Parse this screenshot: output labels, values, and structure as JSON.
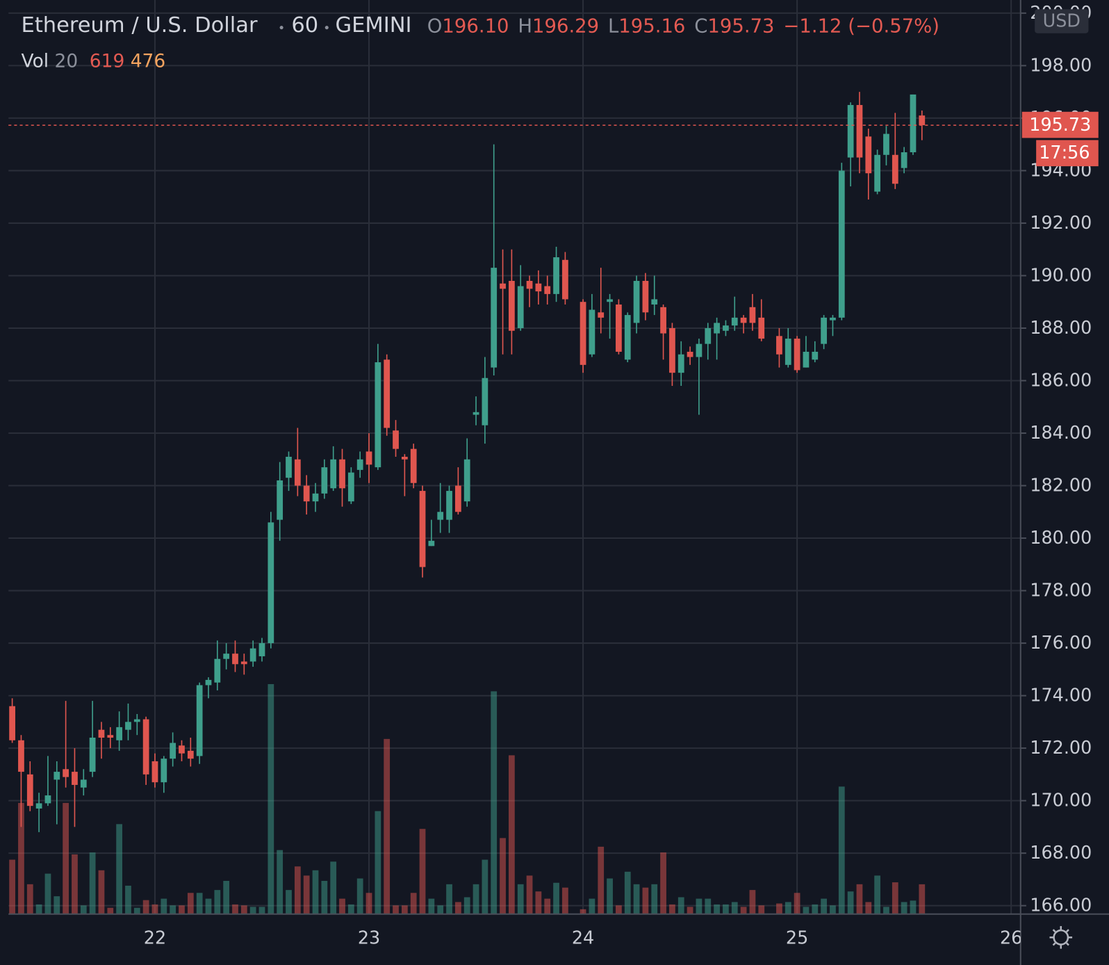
{
  "chart_data": {
    "type": "candlestick",
    "symbol": "Ethereum / U.S. Dollar",
    "interval": "60",
    "exchange": "GEMINI",
    "ohlc_legend": [
      {
        "key": "O",
        "value": "196.10"
      },
      {
        "key": "H",
        "value": "196.29"
      },
      {
        "key": "L",
        "value": "195.16"
      },
      {
        "key": "C",
        "value": "195.73"
      }
    ],
    "change": "−1.12 (−0.57%)",
    "volume_legend": {
      "label": "Vol",
      "length": 20,
      "ma": 476
    },
    "currency": "USD",
    "last_price": {
      "value": 195.73,
      "label": "195.73"
    },
    "countdown": "17:56",
    "up_color": "#3f9f8c",
    "down_color": "#e0564f",
    "grid": true,
    "x": [
      8,
      9,
      10,
      11,
      12,
      13,
      14,
      15,
      16,
      17,
      18,
      19,
      20,
      21,
      22,
      23,
      24,
      25,
      26,
      27,
      28,
      29,
      30,
      31,
      32,
      33,
      34,
      35,
      36,
      37,
      38,
      39,
      40,
      41,
      42,
      43,
      44,
      45,
      46,
      47,
      48,
      49,
      50,
      51,
      52,
      53,
      54,
      55,
      56,
      57,
      58,
      59,
      60,
      61,
      62,
      63,
      64,
      65,
      66,
      67,
      68,
      69,
      70,
      72,
      73,
      74,
      75,
      76,
      77,
      78,
      79,
      80,
      81,
      82,
      83,
      84,
      85,
      86,
      87,
      88,
      89,
      90,
      91,
      92,
      94,
      95,
      96,
      97,
      98,
      99,
      100,
      101,
      102,
      103,
      104,
      105,
      106,
      107,
      108,
      109,
      110
    ],
    "open": [
      173.6,
      172.3,
      171.0,
      169.7,
      169.9,
      170.8,
      171.2,
      171.1,
      170.5,
      171.1,
      172.7,
      172.5,
      172.3,
      172.7,
      173.0,
      173.1,
      171.5,
      170.7,
      171.6,
      172.1,
      171.9,
      171.7,
      174.4,
      174.5,
      175.4,
      175.6,
      175.3,
      175.3,
      175.5,
      176.0,
      180.7,
      182.3,
      183.0,
      182.0,
      181.4,
      181.7,
      181.9,
      183.0,
      181.4,
      182.6,
      183.3,
      182.7,
      186.8,
      184.1,
      183.1,
      183.4,
      181.8,
      179.7,
      180.7,
      180.7,
      182.0,
      181.4,
      184.7,
      184.3,
      186.5,
      189.7,
      189.8,
      188.0,
      189.8,
      189.7,
      189.6,
      189.3,
      190.6,
      189.0,
      187.0,
      188.6,
      189.0,
      188.9,
      186.8,
      188.2,
      189.8,
      188.9,
      188.8,
      188.0,
      186.3,
      187.1,
      186.9,
      187.4,
      187.8,
      187.9,
      188.1,
      188.4,
      188.8,
      188.4,
      187.7,
      186.6,
      187.6,
      186.5,
      186.8,
      187.4,
      188.3,
      188.4,
      194.5,
      196.5,
      195.3,
      193.2,
      194.6,
      194.6,
      194.1,
      194.7,
      196.1
    ],
    "high": [
      173.9,
      172.5,
      171.5,
      170.3,
      171.7,
      171.5,
      173.8,
      172.0,
      171.2,
      173.8,
      173.0,
      172.8,
      173.4,
      173.7,
      173.3,
      173.2,
      171.8,
      171.7,
      172.6,
      172.3,
      172.4,
      174.5,
      174.7,
      176.1,
      176.0,
      176.1,
      175.6,
      176.1,
      176.2,
      181.0,
      182.9,
      183.3,
      184.2,
      182.4,
      182.1,
      183.0,
      183.5,
      183.4,
      182.7,
      183.3,
      184.0,
      187.4,
      187.0,
      184.5,
      183.2,
      183.6,
      182.0,
      180.7,
      182.1,
      182.0,
      182.7,
      183.8,
      185.4,
      186.9,
      195.0,
      191.0,
      191.0,
      190.4,
      190.0,
      190.2,
      190.0,
      191.1,
      190.9,
      189.1,
      189.3,
      190.3,
      189.3,
      189.1,
      188.6,
      190.0,
      190.1,
      190.0,
      188.9,
      188.2,
      187.5,
      187.3,
      187.6,
      188.2,
      188.4,
      188.3,
      189.2,
      188.5,
      189.3,
      189.1,
      188.0,
      188.0,
      187.7,
      187.7,
      187.5,
      188.5,
      188.5,
      194.3,
      196.6,
      197.0,
      195.6,
      194.8,
      195.7,
      196.2,
      194.9,
      196.9,
      196.29
    ],
    "low": [
      172.2,
      169.0,
      169.6,
      168.8,
      169.8,
      169.1,
      170.5,
      169.0,
      170.2,
      170.9,
      171.6,
      172.0,
      171.9,
      172.3,
      172.5,
      170.6,
      170.5,
      170.3,
      171.3,
      171.5,
      171.3,
      171.4,
      173.9,
      174.2,
      175.0,
      174.9,
      174.8,
      175.1,
      175.3,
      175.8,
      179.9,
      181.8,
      181.6,
      180.9,
      181.0,
      181.5,
      181.8,
      181.2,
      181.3,
      182.3,
      182.1,
      182.6,
      183.9,
      183.1,
      181.6,
      181.9,
      178.5,
      179.7,
      180.2,
      180.2,
      180.9,
      181.2,
      184.3,
      183.6,
      186.2,
      187.0,
      187.0,
      187.9,
      188.8,
      188.9,
      188.9,
      189.0,
      188.9,
      186.3,
      186.9,
      187.8,
      187.6,
      187.0,
      186.7,
      187.8,
      188.3,
      188.5,
      186.8,
      185.8,
      185.8,
      186.6,
      184.7,
      186.8,
      186.8,
      187.7,
      187.9,
      187.8,
      187.9,
      187.5,
      186.5,
      186.5,
      186.3,
      186.5,
      186.7,
      187.2,
      187.7,
      188.3,
      193.4,
      193.9,
      192.9,
      193.1,
      194.2,
      193.3,
      193.9,
      194.6,
      195.16
    ],
    "close": [
      172.3,
      171.1,
      169.8,
      169.9,
      170.2,
      171.1,
      170.9,
      170.6,
      170.8,
      172.4,
      172.4,
      172.4,
      172.8,
      173.0,
      173.1,
      171.0,
      170.7,
      171.6,
      172.2,
      171.8,
      171.6,
      174.4,
      174.6,
      175.4,
      175.6,
      175.2,
      175.2,
      175.8,
      176.0,
      180.6,
      182.2,
      183.1,
      182.0,
      181.4,
      181.7,
      182.7,
      183.0,
      181.9,
      182.5,
      183.0,
      182.8,
      186.7,
      184.2,
      183.4,
      183.0,
      182.1,
      178.9,
      179.9,
      181.0,
      181.8,
      181.0,
      183.0,
      184.8,
      186.1,
      190.3,
      189.5,
      187.9,
      189.6,
      189.5,
      189.4,
      189.3,
      190.7,
      189.1,
      186.6,
      188.7,
      188.4,
      189.1,
      187.1,
      188.5,
      189.8,
      188.6,
      189.1,
      187.8,
      186.3,
      187.0,
      186.9,
      187.4,
      188.0,
      188.2,
      188.1,
      188.4,
      188.2,
      188.2,
      187.6,
      187.0,
      187.6,
      186.4,
      187.1,
      187.1,
      188.4,
      188.4,
      194.0,
      196.5,
      194.5,
      193.9,
      194.6,
      195.4,
      193.5,
      194.7,
      196.9,
      195.73
    ],
    "volume": [
      1130,
      2310,
      620,
      200,
      840,
      370,
      2310,
      1240,
      180,
      1280,
      910,
      130,
      1870,
      590,
      130,
      290,
      200,
      320,
      180,
      180,
      440,
      440,
      320,
      500,
      690,
      200,
      180,
      150,
      150,
      4780,
      1330,
      500,
      990,
      800,
      910,
      690,
      1090,
      320,
      200,
      740,
      440,
      2140,
      3640,
      180,
      180,
      440,
      1770,
      320,
      180,
      620,
      250,
      350,
      620,
      1130,
      4630,
      1580,
      3300,
      620,
      800,
      470,
      320,
      650,
      550,
      100,
      320,
      1400,
      740,
      180,
      880,
      620,
      550,
      620,
      1280,
      200,
      350,
      150,
      320,
      320,
      200,
      200,
      250,
      150,
      500,
      180,
      220,
      250,
      440,
      150,
      200,
      320,
      180,
      2650,
      470,
      620,
      250,
      800,
      150,
      660,
      250,
      280,
      619
    ],
    "volume_lim": [
      0,
      19000
    ],
    "xlim": [
      7.58,
      121.06
    ],
    "xticks": [
      {
        "value": 24,
        "label": "22"
      },
      {
        "value": 48,
        "label": "23"
      },
      {
        "value": 72,
        "label": "24"
      },
      {
        "value": 96,
        "label": "25"
      },
      {
        "value": 120,
        "label": "26"
      }
    ],
    "ylim": [
      165.68,
      200.5
    ],
    "yticks": [
      {
        "value": 166,
        "label": "166.00"
      },
      {
        "value": 168,
        "label": "168.00"
      },
      {
        "value": 170,
        "label": "170.00"
      },
      {
        "value": 172,
        "label": "172.00"
      },
      {
        "value": 174,
        "label": "174.00"
      },
      {
        "value": 176,
        "label": "176.00"
      },
      {
        "value": 178,
        "label": "178.00"
      },
      {
        "value": 180,
        "label": "180.00"
      },
      {
        "value": 182,
        "label": "182.00"
      },
      {
        "value": 184,
        "label": "184.00"
      },
      {
        "value": 186,
        "label": "186.00"
      },
      {
        "value": 188,
        "label": "188.00"
      },
      {
        "value": 190,
        "label": "190.00"
      },
      {
        "value": 192,
        "label": "192.00"
      },
      {
        "value": 194,
        "label": "194.00"
      },
      {
        "value": 196,
        "label": "196.00"
      },
      {
        "value": 198,
        "label": "198.00"
      },
      {
        "value": 200,
        "label": "200.00"
      }
    ]
  }
}
